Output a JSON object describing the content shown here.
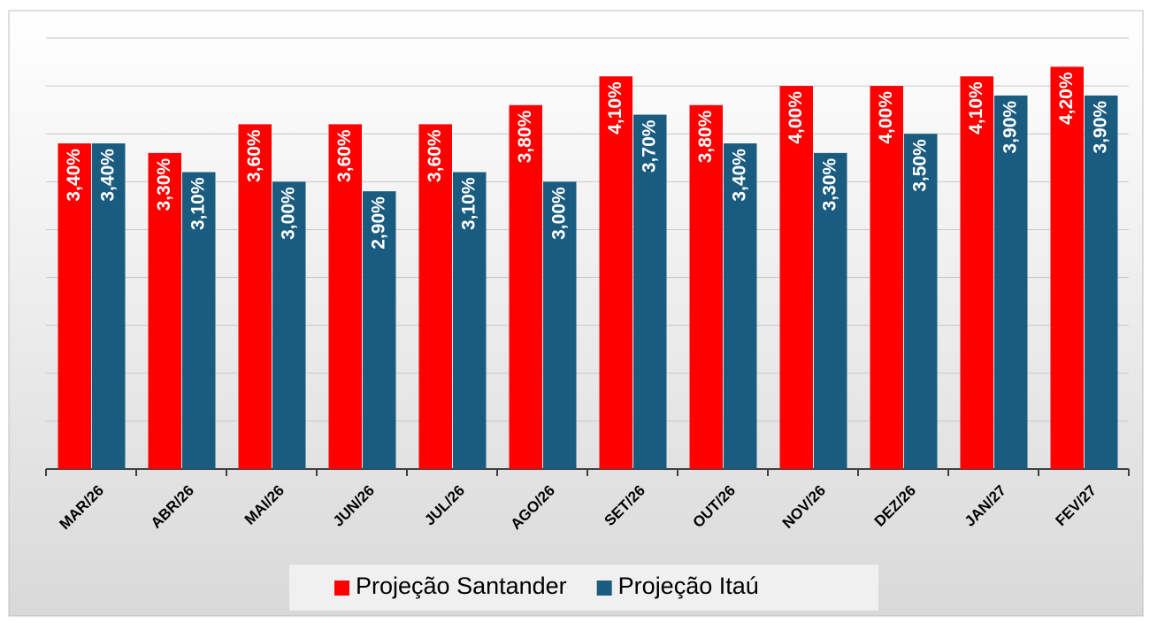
{
  "chart_data": {
    "type": "bar",
    "categories": [
      "MAR/26",
      "ABR/26",
      "MAI/26",
      "JUN/26",
      "JUL/26",
      "AGO/26",
      "SET/26",
      "OUT/26",
      "NOV/26",
      "DEZ/26",
      "JAN/27",
      "FEV/27"
    ],
    "series": [
      {
        "name": "Projeção Santander",
        "color": "#ff0000",
        "values": [
          3.4,
          3.3,
          3.6,
          3.6,
          3.6,
          3.8,
          4.1,
          3.8,
          4.0,
          4.0,
          4.1,
          4.2
        ],
        "value_labels": [
          "3,40%",
          "3,30%",
          "3,60%",
          "3,60%",
          "3,60%",
          "3,80%",
          "4,10%",
          "3,80%",
          "4,00%",
          "4,00%",
          "4,10%",
          "4,20%"
        ]
      },
      {
        "name": "Projeção Itaú",
        "color": "#1a5c80",
        "values": [
          3.4,
          3.1,
          3.0,
          2.9,
          3.1,
          3.0,
          3.7,
          3.4,
          3.3,
          3.5,
          3.9,
          3.9
        ],
        "value_labels": [
          "3,40%",
          "3,10%",
          "3,00%",
          "2,90%",
          "3,10%",
          "3,00%",
          "3,70%",
          "3,40%",
          "3,30%",
          "3,50%",
          "3,90%",
          "3,90%"
        ]
      }
    ],
    "ylim": [
      0,
      4.5
    ],
    "yticks": [
      0,
      0.5,
      1,
      1.5,
      2,
      2.5,
      3,
      3.5,
      4,
      4.5
    ],
    "grid": true,
    "legend": "bottom"
  }
}
